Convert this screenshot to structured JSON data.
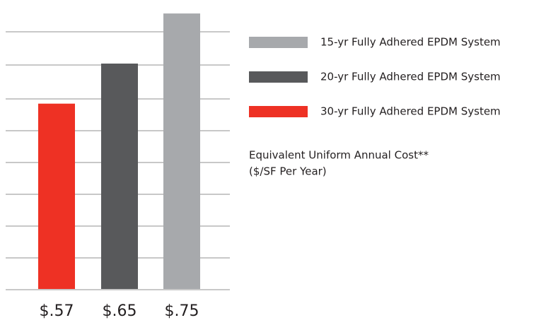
{
  "chart_data": {
    "type": "bar",
    "categories": [
      "30-yr Fully Adhered EPDM System",
      "20-yr Fully Adhered EPDM System",
      "15-yr Fully Adhered EPDM System"
    ],
    "values": [
      0.57,
      0.65,
      0.75
    ],
    "value_labels": [
      "$.57",
      "$.65",
      "$.75"
    ],
    "colors": [
      "#ee3124",
      "#58595b",
      "#a7a9ac"
    ],
    "ylim": [
      0.2,
      0.76
    ],
    "annotations": [
      "Equivalent Uniform Annual Cost**",
      "($/SF Per Year)"
    ]
  }
}
